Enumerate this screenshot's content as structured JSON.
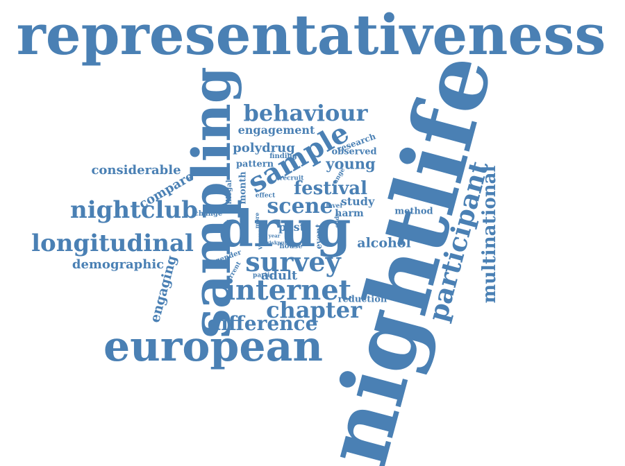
{
  "words": {
    "representativeness": "representativeness",
    "nightlife": "nightlife",
    "sampling": "sampling",
    "behaviour": "behaviour",
    "engagement": "engagement",
    "sample": "sample",
    "polydrug": "polydrug",
    "pattern": "pattern",
    "finding": "finding",
    "research": "research",
    "observed": "observed",
    "young": "young",
    "recruit": "recruit",
    "range": "range",
    "considerable": "considerable",
    "compare": "compare",
    "festival": "festival",
    "participant": "participant",
    "multinational": "multinational",
    "nightclub": "nightclub",
    "illegal": "illegal",
    "month": "month",
    "scene": "scene",
    "study": "study",
    "effect": "effect",
    "level": "level",
    "harm": "harm",
    "method": "method",
    "change": "change",
    "drug": "drug",
    "more": "more",
    "odds": "odds",
    "past": "past",
    "longitudinal": "longitudinal",
    "venue": "venue",
    "event": "event",
    "year": "year",
    "risk": "risk",
    "pub": "pub",
    "house": "house",
    "alcohol": "alcohol",
    "gender": "gender",
    "survey": "survey",
    "demographic": "demographic",
    "current": "current",
    "partic": "partic",
    "adult": "adult",
    "engaging": "engaging",
    "internet": "internet",
    "reduction": "reduction",
    "chapter": "chapter",
    "difference": "difference",
    "european": "european"
  },
  "colors": {
    "word": "#4a80b4",
    "background": "#ffffff"
  }
}
